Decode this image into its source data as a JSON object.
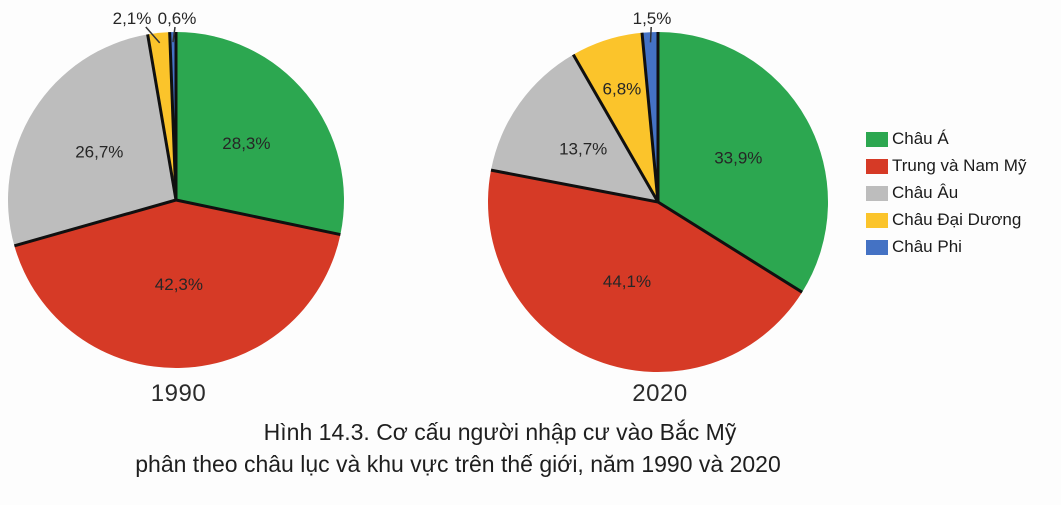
{
  "figure": {
    "caption_line1": "Hình 14.3. Cơ cấu người nhập cư vào Bắc Mỹ",
    "caption_line2": "phân theo châu lục và khu vực trên thế giới, năm 1990 và 2020"
  },
  "legend": {
    "position": "right",
    "items": [
      {
        "label": "Châu Á",
        "color": "#2CA750"
      },
      {
        "label": "Trung và Nam Mỹ",
        "color": "#D63A26"
      },
      {
        "label": "Châu Âu",
        "color": "#BDBDBD"
      },
      {
        "label": "Châu Đại Dương",
        "color": "#FBC42B"
      },
      {
        "label": "Châu Phi",
        "color": "#4472C4"
      }
    ]
  },
  "chart_data": [
    {
      "type": "pie",
      "title": "1990",
      "unit": "%",
      "start_angle": "12 o'clock",
      "direction": "clockwise",
      "categories": [
        "Châu Á",
        "Trung và Nam Mỹ",
        "Châu Âu",
        "Châu Đại Dương",
        "Châu Phi"
      ],
      "values": [
        28.3,
        42.3,
        26.7,
        2.1,
        0.6
      ],
      "display_labels": [
        "28,3%",
        "42,3%",
        "26,7%",
        "2,1%",
        "0,6%"
      ],
      "colors": [
        "#2CA750",
        "#D63A26",
        "#BDBDBD",
        "#FBC42B",
        "#4472C4"
      ]
    },
    {
      "type": "pie",
      "title": "2020",
      "unit": "%",
      "start_angle": "12 o'clock",
      "direction": "clockwise",
      "categories": [
        "Châu Á",
        "Trung và Nam Mỹ",
        "Châu Âu",
        "Châu Đại Dương",
        "Châu Phi"
      ],
      "values": [
        33.9,
        44.1,
        13.7,
        6.8,
        1.5
      ],
      "display_labels": [
        "33,9%",
        "44,1%",
        "13,7%",
        "6,8%",
        "1,5%"
      ],
      "colors": [
        "#2CA750",
        "#D63A26",
        "#BDBDBD",
        "#FBC42B",
        "#4472C4"
      ]
    }
  ]
}
